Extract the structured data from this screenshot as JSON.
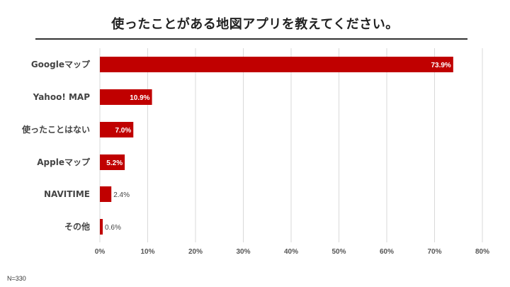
{
  "chart_data": {
    "type": "bar",
    "orientation": "horizontal",
    "title": "使ったことがある地図アプリを教えてください。",
    "categories": [
      "Googleマップ",
      "Yahoo! MAP",
      "使ったことはない",
      "Appleマップ",
      "NAVITIME",
      "その他"
    ],
    "values": [
      73.9,
      10.9,
      7.0,
      5.2,
      2.4,
      0.6
    ],
    "data_labels": [
      "73.9%",
      "10.9%",
      "7.0%",
      "5.2%",
      "2.4%",
      "0.6%"
    ],
    "xlim": [
      0,
      80
    ],
    "xticks": [
      "0%",
      "10%",
      "20%",
      "30%",
      "40%",
      "50%",
      "60%",
      "70%",
      "80%"
    ],
    "grid": "vertical",
    "bar_color": "#c00000",
    "note": "N=330"
  }
}
